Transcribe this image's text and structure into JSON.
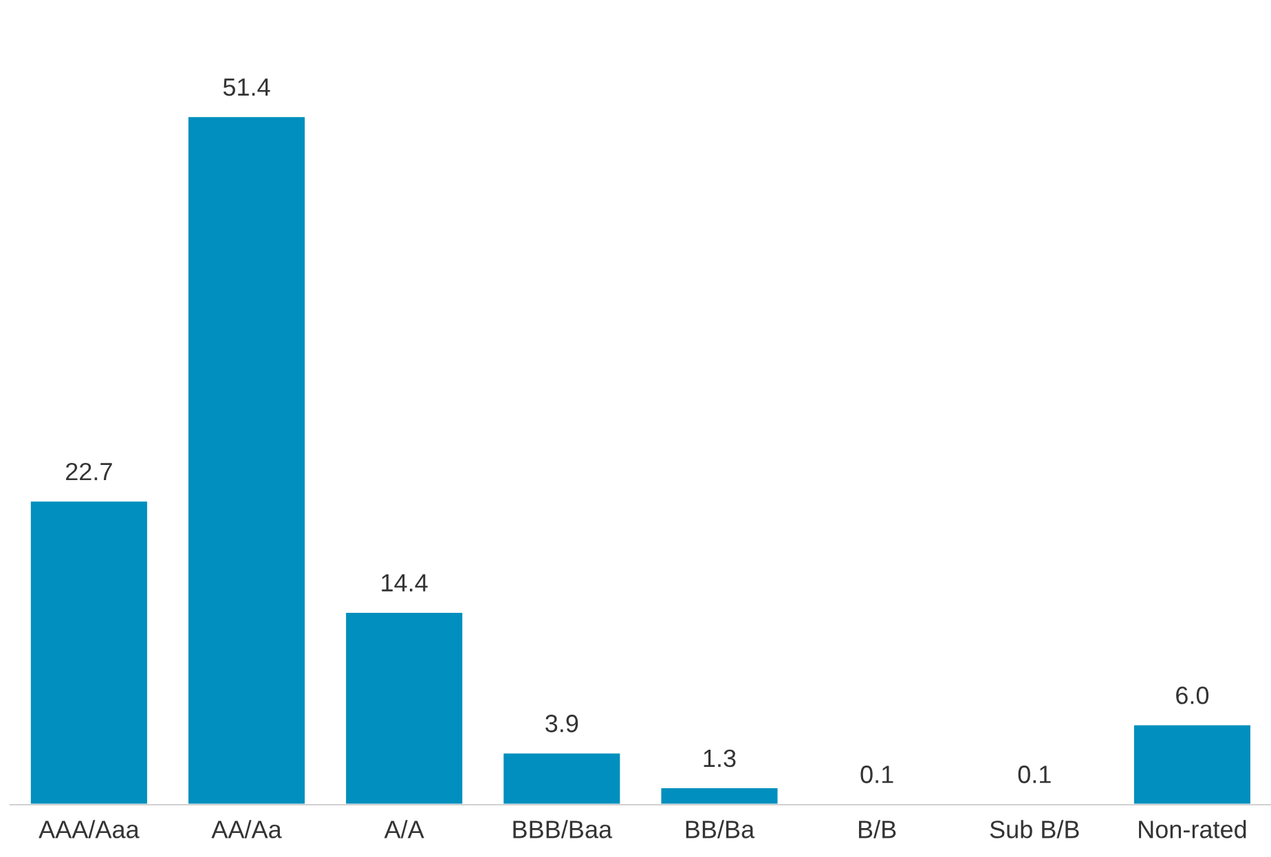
{
  "chart_data": {
    "type": "bar",
    "categories": [
      "AAA/Aaa",
      "AA/Aa",
      "A/A",
      "BBB/Baa",
      "BB/Ba",
      "B/B",
      "Sub B/B",
      "Non-rated"
    ],
    "values": [
      22.7,
      51.4,
      14.4,
      3.9,
      1.3,
      0.1,
      0.1,
      6.0
    ],
    "value_labels": [
      "22.7",
      "51.4",
      "14.4",
      "3.9",
      "1.3",
      "0.1",
      "0.1",
      "6.0"
    ],
    "color": "#008fbe",
    "grid": false,
    "legend": false,
    "tick_labels": "x"
  }
}
